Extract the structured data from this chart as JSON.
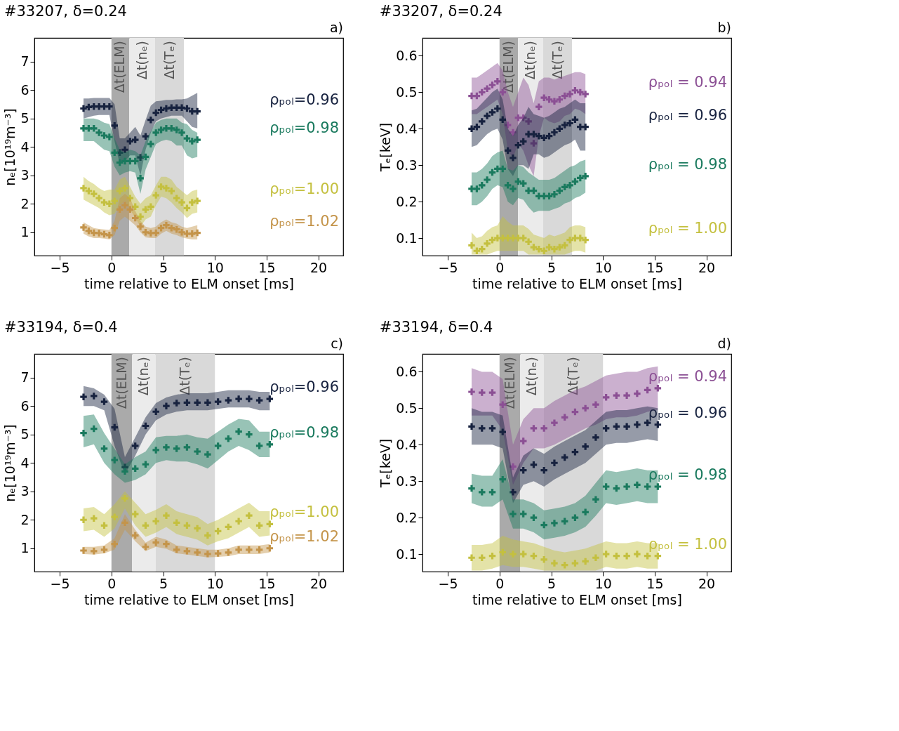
{
  "chart_data": [
    {
      "type": "scatter",
      "marker": "cross",
      "grid": false,
      "title": "#33207, δ=0.24",
      "annotations": [
        "a)"
      ],
      "xlabel": "time relative to ELM onset [ms]",
      "ylabel": "nₑ[10¹⁹m⁻³]",
      "xlim": [
        -7.45,
        22.4
      ],
      "ylim": [
        0.18,
        7.83
      ],
      "xticks": [
        -5,
        0,
        5,
        10,
        15,
        20
      ],
      "yticks": [
        1,
        2,
        3,
        4,
        5,
        6,
        7
      ],
      "bands": [
        {
          "axis": "x",
          "from": 0,
          "to": 1.72,
          "label": "Δt(ELM)",
          "color": "#aaaaaa"
        },
        {
          "axis": "x",
          "from": 1.72,
          "to": 4.22,
          "label": "Δt(nₑ)",
          "color": "#ebebeb"
        },
        {
          "axis": "x",
          "from": 4.22,
          "to": 7.0,
          "label": "Δt(Tₑ)",
          "color": "#d9d9d9"
        }
      ],
      "x": [
        -2.7,
        -2.2,
        -1.7,
        -1.2,
        -0.7,
        -0.2,
        0.3,
        0.8,
        1.3,
        1.8,
        2.3,
        2.8,
        3.3,
        3.8,
        4.3,
        4.8,
        5.3,
        5.8,
        6.3,
        6.8,
        7.3,
        7.8,
        8.3
      ],
      "series": [
        {
          "name": "ρₚₒₗ=0.96",
          "color": "#17223f",
          "values": [
            5.35,
            5.4,
            5.42,
            5.42,
            5.42,
            5.42,
            4.75,
            3.8,
            3.9,
            4.2,
            4.25,
            3.63,
            4.37,
            4.95,
            5.2,
            5.3,
            5.35,
            5.38,
            5.38,
            5.38,
            5.35,
            5.25,
            5.25
          ],
          "upper": [
            5.7,
            5.7,
            5.72,
            5.72,
            5.72,
            5.72,
            5.5,
            4.3,
            4.3,
            4.5,
            4.7,
            4.4,
            4.95,
            5.45,
            5.6,
            5.62,
            5.65,
            5.65,
            5.67,
            5.67,
            5.7,
            5.8,
            5.9
          ],
          "lower": [
            5.0,
            5.05,
            5.1,
            5.12,
            5.12,
            5.12,
            4.2,
            3.4,
            3.5,
            3.7,
            3.7,
            3.0,
            3.9,
            4.5,
            4.9,
            5.0,
            5.05,
            5.1,
            5.1,
            5.1,
            4.9,
            4.7,
            4.65
          ]
        },
        {
          "name": "ρₚₒₗ=0.98",
          "color": "#1a7a5e",
          "values": [
            4.65,
            4.65,
            4.65,
            4.5,
            4.4,
            4.35,
            3.8,
            3.45,
            3.5,
            3.5,
            3.5,
            2.9,
            3.65,
            4.1,
            4.5,
            4.6,
            4.65,
            4.65,
            4.6,
            4.5,
            4.3,
            4.2,
            4.25
          ],
          "upper": [
            5.0,
            5.0,
            5.0,
            4.95,
            4.85,
            4.8,
            4.3,
            3.9,
            3.8,
            3.9,
            3.85,
            3.7,
            4.2,
            4.55,
            4.85,
            4.95,
            5.0,
            5.0,
            5.0,
            4.85,
            4.8,
            4.6,
            4.5
          ],
          "lower": [
            4.2,
            4.2,
            4.2,
            4.05,
            3.9,
            3.85,
            3.3,
            3.0,
            3.1,
            3.15,
            3.1,
            2.35,
            3.2,
            3.65,
            4.1,
            4.2,
            4.25,
            4.2,
            4.05,
            4.05,
            3.7,
            3.6,
            3.65
          ]
        },
        {
          "name": "ρₚₒₗ=1.00",
          "color": "#c4c03f",
          "values": [
            2.55,
            2.45,
            2.35,
            2.2,
            2.05,
            2.0,
            2.1,
            2.45,
            2.55,
            2.2,
            1.9,
            1.55,
            1.8,
            1.9,
            2.3,
            2.6,
            2.55,
            2.45,
            2.2,
            2.05,
            1.85,
            2.05,
            2.1
          ],
          "upper": [
            2.95,
            2.8,
            2.7,
            2.55,
            2.45,
            2.5,
            2.5,
            2.85,
            2.95,
            2.6,
            2.25,
            2.0,
            2.2,
            2.3,
            2.65,
            2.95,
            2.95,
            2.85,
            2.6,
            2.45,
            2.3,
            2.45,
            2.5
          ],
          "lower": [
            2.15,
            2.05,
            1.95,
            1.85,
            1.7,
            1.6,
            1.65,
            1.95,
            2.1,
            1.8,
            1.5,
            1.2,
            1.45,
            1.55,
            1.95,
            2.25,
            2.2,
            2.05,
            1.85,
            1.7,
            1.5,
            1.65,
            1.7
          ]
        },
        {
          "name": "ρₚₒₗ=1.02",
          "color": "#c4944a",
          "values": [
            1.17,
            1.05,
            0.98,
            0.97,
            0.93,
            0.9,
            1.15,
            1.8,
            1.95,
            1.8,
            1.5,
            1.2,
            1.0,
            0.97,
            0.98,
            1.15,
            1.25,
            1.15,
            1.1,
            1.0,
            0.95,
            0.95,
            0.98
          ],
          "upper": [
            1.35,
            1.25,
            1.15,
            1.12,
            1.1,
            1.08,
            1.4,
            2.2,
            2.35,
            2.2,
            1.75,
            1.4,
            1.2,
            1.15,
            1.2,
            1.35,
            1.45,
            1.35,
            1.3,
            1.2,
            1.15,
            1.2,
            1.25
          ],
          "lower": [
            0.95,
            0.85,
            0.8,
            0.8,
            0.78,
            0.75,
            0.9,
            1.4,
            1.55,
            1.4,
            1.25,
            1.0,
            0.82,
            0.8,
            0.8,
            0.95,
            1.05,
            0.95,
            0.9,
            0.82,
            0.78,
            0.75,
            0.75
          ]
        }
      ]
    },
    {
      "type": "scatter",
      "marker": "cross",
      "grid": false,
      "title": "#33207, δ=0.24",
      "annotations": [
        "b)"
      ],
      "xlabel": "time relative to ELM onset [ms]",
      "ylabel": "Tₑ[keV]",
      "xlim": [
        -7.45,
        22.4
      ],
      "ylim": [
        0.052,
        0.649
      ],
      "xticks": [
        -5,
        0,
        5,
        10,
        15,
        20
      ],
      "yticks": [
        0.1,
        0.2,
        0.3,
        0.4,
        0.5,
        0.6
      ],
      "bands": [
        {
          "axis": "x",
          "from": 0,
          "to": 1.78,
          "label": "Δt(ELM)",
          "color": "#aaaaaa"
        },
        {
          "axis": "x",
          "from": 1.78,
          "to": 4.22,
          "label": "Δt(nₑ)",
          "color": "#ebebeb"
        },
        {
          "axis": "x",
          "from": 4.22,
          "to": 7.0,
          "label": "Δt(Tₑ)",
          "color": "#d9d9d9"
        }
      ],
      "x": [
        -2.7,
        -2.2,
        -1.7,
        -1.2,
        -0.7,
        -0.2,
        0.3,
        0.8,
        1.3,
        1.8,
        2.3,
        2.8,
        3.3,
        3.8,
        4.3,
        4.8,
        5.3,
        5.8,
        6.3,
        6.8,
        7.3,
        7.8,
        8.3
      ],
      "series": [
        {
          "name": "ρₚₒₗ = 0.94",
          "color": "#8b4f94",
          "values": [
            0.49,
            0.49,
            0.5,
            0.51,
            0.52,
            0.53,
            0.5,
            0.41,
            0.39,
            0.43,
            0.43,
            0.42,
            0.36,
            0.46,
            0.485,
            0.48,
            0.475,
            0.48,
            0.49,
            0.495,
            0.505,
            0.5,
            0.495
          ],
          "upper": [
            0.54,
            0.54,
            0.55,
            0.56,
            0.57,
            0.58,
            0.56,
            0.5,
            0.46,
            0.5,
            0.54,
            0.52,
            0.47,
            0.53,
            0.54,
            0.54,
            0.535,
            0.54,
            0.545,
            0.55,
            0.555,
            0.555,
            0.55
          ],
          "lower": [
            0.44,
            0.44,
            0.45,
            0.46,
            0.47,
            0.48,
            0.44,
            0.34,
            0.32,
            0.36,
            0.34,
            0.3,
            0.27,
            0.38,
            0.43,
            0.42,
            0.415,
            0.42,
            0.435,
            0.44,
            0.455,
            0.45,
            0.44
          ]
        },
        {
          "name": "ρₚₒₗ = 0.96",
          "color": "#17223f",
          "values": [
            0.4,
            0.405,
            0.42,
            0.435,
            0.445,
            0.455,
            0.425,
            0.34,
            0.32,
            0.355,
            0.365,
            0.385,
            0.385,
            0.38,
            0.375,
            0.38,
            0.39,
            0.4,
            0.41,
            0.415,
            0.425,
            0.405,
            0.405
          ],
          "upper": [
            0.45,
            0.455,
            0.47,
            0.485,
            0.5,
            0.51,
            0.48,
            0.4,
            0.38,
            0.41,
            0.43,
            0.46,
            0.44,
            0.435,
            0.43,
            0.435,
            0.445,
            0.455,
            0.46,
            0.47,
            0.48,
            0.47,
            0.47
          ],
          "lower": [
            0.35,
            0.355,
            0.37,
            0.385,
            0.395,
            0.4,
            0.37,
            0.29,
            0.27,
            0.3,
            0.3,
            0.29,
            0.33,
            0.33,
            0.32,
            0.325,
            0.335,
            0.345,
            0.355,
            0.36,
            0.37,
            0.34,
            0.34
          ]
        },
        {
          "name": "ρₚₒₗ = 0.98",
          "color": "#1a7a5e",
          "values": [
            0.235,
            0.235,
            0.245,
            0.26,
            0.28,
            0.29,
            0.29,
            0.245,
            0.235,
            0.255,
            0.25,
            0.23,
            0.23,
            0.215,
            0.215,
            0.215,
            0.22,
            0.23,
            0.24,
            0.245,
            0.255,
            0.265,
            0.27
          ],
          "upper": [
            0.28,
            0.28,
            0.29,
            0.305,
            0.325,
            0.335,
            0.34,
            0.29,
            0.285,
            0.3,
            0.295,
            0.28,
            0.27,
            0.26,
            0.26,
            0.26,
            0.265,
            0.275,
            0.285,
            0.295,
            0.3,
            0.31,
            0.315
          ],
          "lower": [
            0.19,
            0.19,
            0.2,
            0.215,
            0.235,
            0.245,
            0.24,
            0.2,
            0.19,
            0.21,
            0.205,
            0.185,
            0.17,
            0.175,
            0.175,
            0.175,
            0.18,
            0.185,
            0.195,
            0.2,
            0.21,
            0.215,
            0.225
          ]
        },
        {
          "name": "ρₚₒₗ = 1.00",
          "color": "#c4c03f",
          "values": [
            0.08,
            0.065,
            0.07,
            0.085,
            0.095,
            0.1,
            0.1,
            0.1,
            0.1,
            0.1,
            0.1,
            0.09,
            0.075,
            0.07,
            0.065,
            0.075,
            0.07,
            0.075,
            0.08,
            0.095,
            0.1,
            0.1,
            0.095
          ],
          "upper": [
            0.115,
            0.1,
            0.105,
            0.12,
            0.13,
            0.135,
            0.16,
            0.145,
            0.135,
            0.135,
            0.135,
            0.125,
            0.11,
            0.105,
            0.1,
            0.11,
            0.105,
            0.11,
            0.115,
            0.13,
            0.135,
            0.135,
            0.13
          ],
          "lower": [
            0.055,
            0.055,
            0.055,
            0.055,
            0.06,
            0.065,
            0.065,
            0.065,
            0.065,
            0.065,
            0.065,
            0.055,
            0.055,
            0.055,
            0.055,
            0.055,
            0.055,
            0.055,
            0.055,
            0.06,
            0.065,
            0.065,
            0.06
          ]
        }
      ]
    },
    {
      "type": "scatter",
      "marker": "cross",
      "grid": false,
      "title": "#33194, δ=0.4",
      "annotations": [
        "c)"
      ],
      "xlabel": "time relative to ELM onset [ms]",
      "ylabel": "nₑ[10¹⁹m⁻³]",
      "xlim": [
        -7.45,
        22.4
      ],
      "ylim": [
        0.18,
        7.83
      ],
      "xticks": [
        -5,
        0,
        5,
        10,
        15,
        20
      ],
      "yticks": [
        1,
        2,
        3,
        4,
        5,
        6,
        7
      ],
      "bands": [
        {
          "axis": "x",
          "from": 0,
          "to": 2.0,
          "label": "Δt(ELM)",
          "color": "#aaaaaa"
        },
        {
          "axis": "x",
          "from": 2.0,
          "to": 4.28,
          "label": "Δt(nₑ)",
          "color": "#ebebeb"
        },
        {
          "axis": "x",
          "from": 4.28,
          "to": 10.0,
          "label": "Δt(Tₑ)",
          "color": "#d9d9d9"
        }
      ],
      "x": [
        -2.7,
        -1.7,
        -0.7,
        0.3,
        1.3,
        2.3,
        3.3,
        4.3,
        5.3,
        6.3,
        7.3,
        8.3,
        9.3,
        10.3,
        11.3,
        12.3,
        13.3,
        14.3,
        15.3
      ],
      "series": [
        {
          "name": "ρₚₒₗ=0.96",
          "color": "#17223f",
          "values": [
            6.32,
            6.35,
            6.15,
            5.25,
            3.85,
            4.6,
            5.3,
            5.8,
            6.0,
            6.1,
            6.12,
            6.12,
            6.12,
            6.15,
            6.2,
            6.25,
            6.25,
            6.2,
            6.25
          ],
          "upper": [
            6.7,
            6.62,
            6.4,
            5.9,
            4.2,
            4.9,
            5.6,
            6.1,
            6.3,
            6.4,
            6.45,
            6.45,
            6.45,
            6.5,
            6.55,
            6.55,
            6.55,
            6.5,
            6.5
          ],
          "lower": [
            6.0,
            6.0,
            5.85,
            4.6,
            3.6,
            4.25,
            5.0,
            5.5,
            5.7,
            5.8,
            5.85,
            5.85,
            5.85,
            5.9,
            5.95,
            5.95,
            5.95,
            5.85,
            5.85
          ]
        },
        {
          "name": "ρₚₒₗ=0.98",
          "color": "#1a7a5e",
          "values": [
            5.05,
            5.2,
            4.5,
            4.1,
            3.7,
            3.8,
            3.95,
            4.45,
            4.55,
            4.5,
            4.55,
            4.4,
            4.3,
            4.6,
            4.85,
            5.1,
            5.0,
            4.6,
            4.65
          ],
          "upper": [
            5.65,
            5.7,
            5.05,
            4.5,
            3.95,
            4.2,
            4.4,
            4.9,
            4.95,
            4.95,
            5.0,
            4.9,
            4.85,
            5.1,
            5.35,
            5.55,
            5.5,
            5.1,
            5.1
          ],
          "lower": [
            4.55,
            4.65,
            4.0,
            3.6,
            3.3,
            3.4,
            3.6,
            4.0,
            4.1,
            4.05,
            4.05,
            3.95,
            3.8,
            4.1,
            4.4,
            4.6,
            4.45,
            4.2,
            4.2
          ]
        },
        {
          "name": "ρₚₒₗ=1.00",
          "color": "#c4c03f",
          "values": [
            2.0,
            2.05,
            1.8,
            2.1,
            2.75,
            2.2,
            1.8,
            1.95,
            2.15,
            1.9,
            1.8,
            1.7,
            1.45,
            1.6,
            1.75,
            1.95,
            2.15,
            1.8,
            1.85
          ],
          "upper": [
            2.4,
            2.45,
            2.2,
            2.55,
            3.0,
            2.6,
            2.2,
            2.35,
            2.55,
            2.3,
            2.2,
            2.1,
            1.85,
            2.0,
            2.2,
            2.4,
            2.6,
            2.3,
            2.3
          ],
          "lower": [
            1.6,
            1.65,
            1.4,
            1.7,
            2.4,
            1.8,
            1.4,
            1.55,
            1.75,
            1.5,
            1.4,
            1.3,
            1.1,
            1.25,
            1.35,
            1.55,
            1.75,
            1.4,
            1.45
          ]
        },
        {
          "name": "ρₚₒₗ=1.02",
          "color": "#c4944a",
          "values": [
            0.92,
            0.9,
            0.95,
            1.15,
            1.9,
            1.45,
            1.05,
            1.2,
            1.15,
            0.95,
            0.9,
            0.85,
            0.8,
            0.82,
            0.85,
            0.95,
            0.95,
            0.95,
            1.0
          ],
          "upper": [
            1.05,
            1.05,
            1.1,
            1.35,
            2.2,
            1.65,
            1.2,
            1.4,
            1.3,
            1.1,
            1.05,
            1.0,
            0.95,
            0.95,
            1.0,
            1.1,
            1.1,
            1.1,
            1.15
          ],
          "lower": [
            0.8,
            0.78,
            0.82,
            0.95,
            1.65,
            1.25,
            0.9,
            1.05,
            0.98,
            0.82,
            0.78,
            0.73,
            0.68,
            0.7,
            0.72,
            0.8,
            0.8,
            0.8,
            0.85
          ]
        }
      ]
    },
    {
      "type": "scatter",
      "marker": "cross",
      "grid": false,
      "title": "#33194, δ=0.4",
      "annotations": [
        "d)"
      ],
      "xlabel": "time relative to ELM onset [ms]",
      "ylabel": "Tₑ[keV]",
      "xlim": [
        -7.45,
        22.4
      ],
      "ylim": [
        0.052,
        0.649
      ],
      "xticks": [
        -5,
        0,
        5,
        10,
        15,
        20
      ],
      "yticks": [
        0.1,
        0.2,
        0.3,
        0.4,
        0.5,
        0.6
      ],
      "bands": [
        {
          "axis": "x",
          "from": 0,
          "to": 2.0,
          "label": "Δt(ELM)",
          "color": "#aaaaaa"
        },
        {
          "axis": "x",
          "from": 2.0,
          "to": 4.28,
          "label": "Δt(nₑ)",
          "color": "#ebebeb"
        },
        {
          "axis": "x",
          "from": 4.28,
          "to": 10.0,
          "label": "Δt(Tₑ)",
          "color": "#d9d9d9"
        }
      ],
      "x": [
        -2.7,
        -1.7,
        -0.7,
        0.3,
        1.3,
        2.3,
        3.3,
        4.3,
        5.3,
        6.3,
        7.3,
        8.3,
        9.3,
        10.3,
        11.3,
        12.3,
        13.3,
        14.3,
        15.3
      ],
      "series": [
        {
          "name": "ρₚₒₗ = 0.94",
          "color": "#8b4f94",
          "values": [
            0.545,
            0.543,
            0.543,
            0.51,
            0.34,
            0.41,
            0.445,
            0.445,
            0.46,
            0.475,
            0.49,
            0.5,
            0.51,
            0.53,
            0.535,
            0.535,
            0.54,
            0.55,
            0.555
          ],
          "upper": [
            0.61,
            0.6,
            0.6,
            0.58,
            0.4,
            0.47,
            0.5,
            0.5,
            0.52,
            0.535,
            0.55,
            0.56,
            0.575,
            0.59,
            0.595,
            0.6,
            0.6,
            0.61,
            0.615
          ],
          "lower": [
            0.48,
            0.48,
            0.48,
            0.44,
            0.29,
            0.35,
            0.39,
            0.39,
            0.4,
            0.415,
            0.43,
            0.445,
            0.455,
            0.47,
            0.475,
            0.475,
            0.48,
            0.49,
            0.495
          ]
        },
        {
          "name": "ρₚₒₗ = 0.96",
          "color": "#17223f",
          "values": [
            0.45,
            0.445,
            0.445,
            0.435,
            0.27,
            0.33,
            0.345,
            0.33,
            0.35,
            0.365,
            0.38,
            0.395,
            0.42,
            0.445,
            0.45,
            0.45,
            0.455,
            0.46,
            0.455
          ],
          "upper": [
            0.5,
            0.49,
            0.49,
            0.48,
            0.31,
            0.37,
            0.39,
            0.375,
            0.395,
            0.41,
            0.425,
            0.44,
            0.465,
            0.49,
            0.495,
            0.495,
            0.5,
            0.505,
            0.5
          ],
          "lower": [
            0.4,
            0.4,
            0.4,
            0.39,
            0.24,
            0.29,
            0.3,
            0.285,
            0.305,
            0.32,
            0.335,
            0.35,
            0.375,
            0.4,
            0.405,
            0.405,
            0.41,
            0.415,
            0.41
          ]
        },
        {
          "name": "ρₚₒₗ = 0.98",
          "color": "#1a7a5e",
          "values": [
            0.28,
            0.27,
            0.27,
            0.305,
            0.21,
            0.21,
            0.2,
            0.18,
            0.185,
            0.19,
            0.2,
            0.215,
            0.25,
            0.285,
            0.28,
            0.285,
            0.29,
            0.285,
            0.285
          ],
          "upper": [
            0.32,
            0.315,
            0.315,
            0.36,
            0.25,
            0.25,
            0.24,
            0.22,
            0.225,
            0.23,
            0.24,
            0.26,
            0.295,
            0.33,
            0.325,
            0.33,
            0.335,
            0.33,
            0.33
          ],
          "lower": [
            0.24,
            0.23,
            0.23,
            0.25,
            0.17,
            0.17,
            0.16,
            0.14,
            0.145,
            0.15,
            0.16,
            0.175,
            0.205,
            0.24,
            0.235,
            0.24,
            0.245,
            0.24,
            0.24
          ]
        },
        {
          "name": "ρₚₒₗ = 1.00",
          "color": "#c4c03f",
          "values": [
            0.09,
            0.09,
            0.095,
            0.105,
            0.1,
            0.1,
            0.095,
            0.085,
            0.075,
            0.07,
            0.075,
            0.08,
            0.09,
            0.1,
            0.095,
            0.095,
            0.1,
            0.095,
            0.095
          ],
          "upper": [
            0.125,
            0.125,
            0.13,
            0.15,
            0.14,
            0.135,
            0.13,
            0.12,
            0.11,
            0.105,
            0.11,
            0.115,
            0.125,
            0.135,
            0.13,
            0.13,
            0.135,
            0.13,
            0.13
          ],
          "lower": [
            0.055,
            0.055,
            0.06,
            0.07,
            0.065,
            0.065,
            0.06,
            0.055,
            0.055,
            0.055,
            0.055,
            0.055,
            0.055,
            0.065,
            0.06,
            0.06,
            0.065,
            0.06,
            0.06
          ]
        }
      ]
    }
  ]
}
